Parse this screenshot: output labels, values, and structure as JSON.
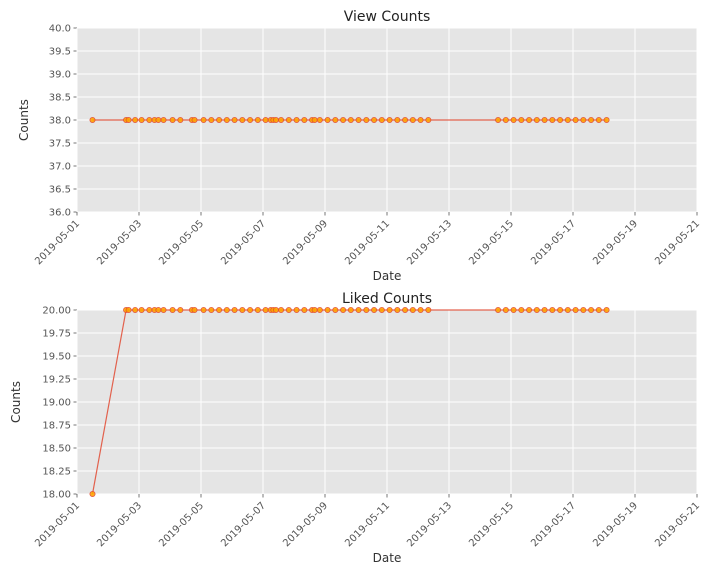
{
  "chart_data": [
    {
      "type": "line",
      "title": "View Counts",
      "xlabel": "Date",
      "ylabel": "Counts",
      "ylim": [
        36.0,
        40.0
      ],
      "yticks": [
        "36.0",
        "36.5",
        "37.0",
        "37.5",
        "38.0",
        "38.5",
        "39.0",
        "39.5",
        "40.0"
      ],
      "ytick_values": [
        36.0,
        36.5,
        37.0,
        37.5,
        38.0,
        38.5,
        39.0,
        39.5,
        40.0
      ],
      "xlim": [
        "2019-05-01",
        "2019-05-21"
      ],
      "xticks": [
        "2019-05-01",
        "2019-05-03",
        "2019-05-05",
        "2019-05-07",
        "2019-05-09",
        "2019-05-11",
        "2019-05-13",
        "2019-05-15",
        "2019-05-17",
        "2019-05-19",
        "2019-05-21"
      ],
      "grid": true,
      "series": [
        {
          "values": [
            38,
            38,
            38,
            38,
            38,
            38,
            38,
            38,
            38,
            38,
            38,
            38,
            38,
            38,
            38,
            38,
            38,
            38,
            38,
            38,
            38,
            38,
            38,
            38,
            38,
            38,
            38,
            38,
            38,
            38,
            38,
            38,
            38,
            38,
            38,
            38,
            38,
            38,
            38,
            38,
            38,
            38,
            38,
            38,
            38,
            38,
            38,
            38,
            38,
            38,
            38,
            38,
            38,
            38,
            38,
            38,
            38,
            38,
            38,
            38,
            38
          ]
        }
      ]
    },
    {
      "type": "line",
      "title": "Liked Counts",
      "xlabel": "Date",
      "ylabel": "Counts",
      "ylim": [
        18.0,
        20.0
      ],
      "yticks": [
        "18.00",
        "18.25",
        "18.50",
        "18.75",
        "19.00",
        "19.25",
        "19.50",
        "19.75",
        "20.00"
      ],
      "ytick_values": [
        18.0,
        18.25,
        18.5,
        18.75,
        19.0,
        19.25,
        19.5,
        19.75,
        20.0
      ],
      "xlim": [
        "2019-05-01",
        "2019-05-21"
      ],
      "xticks": [
        "2019-05-01",
        "2019-05-03",
        "2019-05-05",
        "2019-05-07",
        "2019-05-09",
        "2019-05-11",
        "2019-05-13",
        "2019-05-15",
        "2019-05-17",
        "2019-05-19",
        "2019-05-21"
      ],
      "grid": true,
      "series": [
        {
          "values": [
            18,
            20,
            20,
            20,
            20,
            20,
            20,
            20,
            20,
            20,
            20,
            20,
            20,
            20,
            20,
            20,
            20,
            20,
            20,
            20,
            20,
            20,
            20,
            20,
            20,
            20,
            20,
            20,
            20,
            20,
            20,
            20,
            20,
            20,
            20,
            20,
            20,
            20,
            20,
            20,
            20,
            20,
            20,
            20,
            20,
            20,
            20,
            20,
            20,
            20,
            20,
            20,
            20,
            20,
            20,
            20,
            20,
            20,
            20,
            20,
            20
          ]
        }
      ]
    }
  ],
  "shared_x": [
    "2019-05-01 12:00",
    "2019-05-02 14:00",
    "2019-05-02 16:00",
    "2019-05-02 21:00",
    "2019-05-03 02:00",
    "2019-05-03 08:00",
    "2019-05-03 12:00",
    "2019-05-03 15:00",
    "2019-05-03 19:00",
    "2019-05-04 02:00",
    "2019-05-04 08:00",
    "2019-05-04 17:00",
    "2019-05-04 19:00",
    "2019-05-05 02:00",
    "2019-05-05 08:00",
    "2019-05-05 14:00",
    "2019-05-05 20:00",
    "2019-05-06 02:00",
    "2019-05-06 08:00",
    "2019-05-06 14:00",
    "2019-05-06 20:00",
    "2019-05-07 02:00",
    "2019-05-07 06:00",
    "2019-05-07 08:00",
    "2019-05-07 10:00",
    "2019-05-07 14:00",
    "2019-05-07 20:00",
    "2019-05-08 02:00",
    "2019-05-08 08:00",
    "2019-05-08 14:00",
    "2019-05-08 16:00",
    "2019-05-08 20:00",
    "2019-05-09 02:00",
    "2019-05-09 08:00",
    "2019-05-09 14:00",
    "2019-05-09 20:00",
    "2019-05-10 02:00",
    "2019-05-10 08:00",
    "2019-05-10 14:00",
    "2019-05-10 20:00",
    "2019-05-11 02:00",
    "2019-05-11 08:00",
    "2019-05-11 14:00",
    "2019-05-11 20:00",
    "2019-05-12 02:00",
    "2019-05-12 08:00",
    "2019-05-14 14:00",
    "2019-05-14 20:00",
    "2019-05-15 02:00",
    "2019-05-15 08:00",
    "2019-05-15 14:00",
    "2019-05-15 20:00",
    "2019-05-16 02:00",
    "2019-05-16 08:00",
    "2019-05-16 14:00",
    "2019-05-16 20:00",
    "2019-05-17 02:00",
    "2019-05-17 08:00",
    "2019-05-17 14:00",
    "2019-05-17 20:00",
    "2019-05-18 02:00"
  ],
  "colors": {
    "background": "#ffffff",
    "axes_face": "#e5e5e5",
    "grid": "#ffffff",
    "line": "#e24a33",
    "marker_fill": "#ffa500",
    "text": "#333333",
    "tick": "#555555"
  }
}
